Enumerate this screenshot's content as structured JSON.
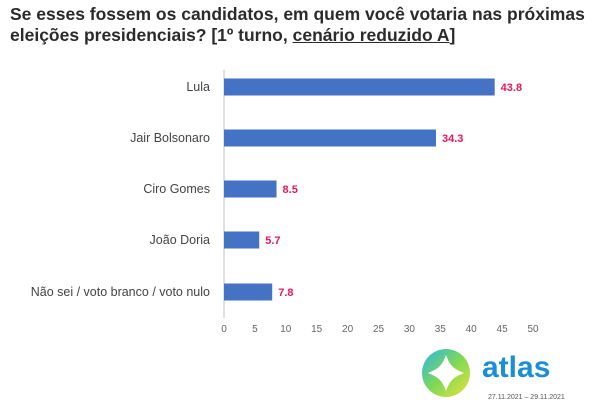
{
  "title": {
    "part1": "Se esses fossem os candidatos, em quem você votaria nas próximas eleições presidenciais? [1º turno, ",
    "part2": "cenário reduzido A",
    "part3": "]"
  },
  "chart_data": {
    "type": "bar",
    "orientation": "horizontal",
    "categories": [
      "Lula",
      "Jair Bolsonaro",
      "Ciro Gomes",
      "João Doria",
      "Não sei / voto branco / voto nulo"
    ],
    "values": [
      43.8,
      34.3,
      8.5,
      5.7,
      7.8
    ],
    "value_labels": [
      "43.8",
      "34.3",
      "8.5",
      "5.7",
      "7.8"
    ],
    "xlim": [
      0,
      50
    ],
    "xticks": [
      0,
      5,
      10,
      15,
      20,
      25,
      30,
      35,
      40,
      45,
      50
    ],
    "bar_color": "#4472c4",
    "label_color": "#e8175d",
    "grid": false
  },
  "brand": {
    "name": "atlas",
    "dates": "27.11.2021 – 29.11.2021"
  }
}
